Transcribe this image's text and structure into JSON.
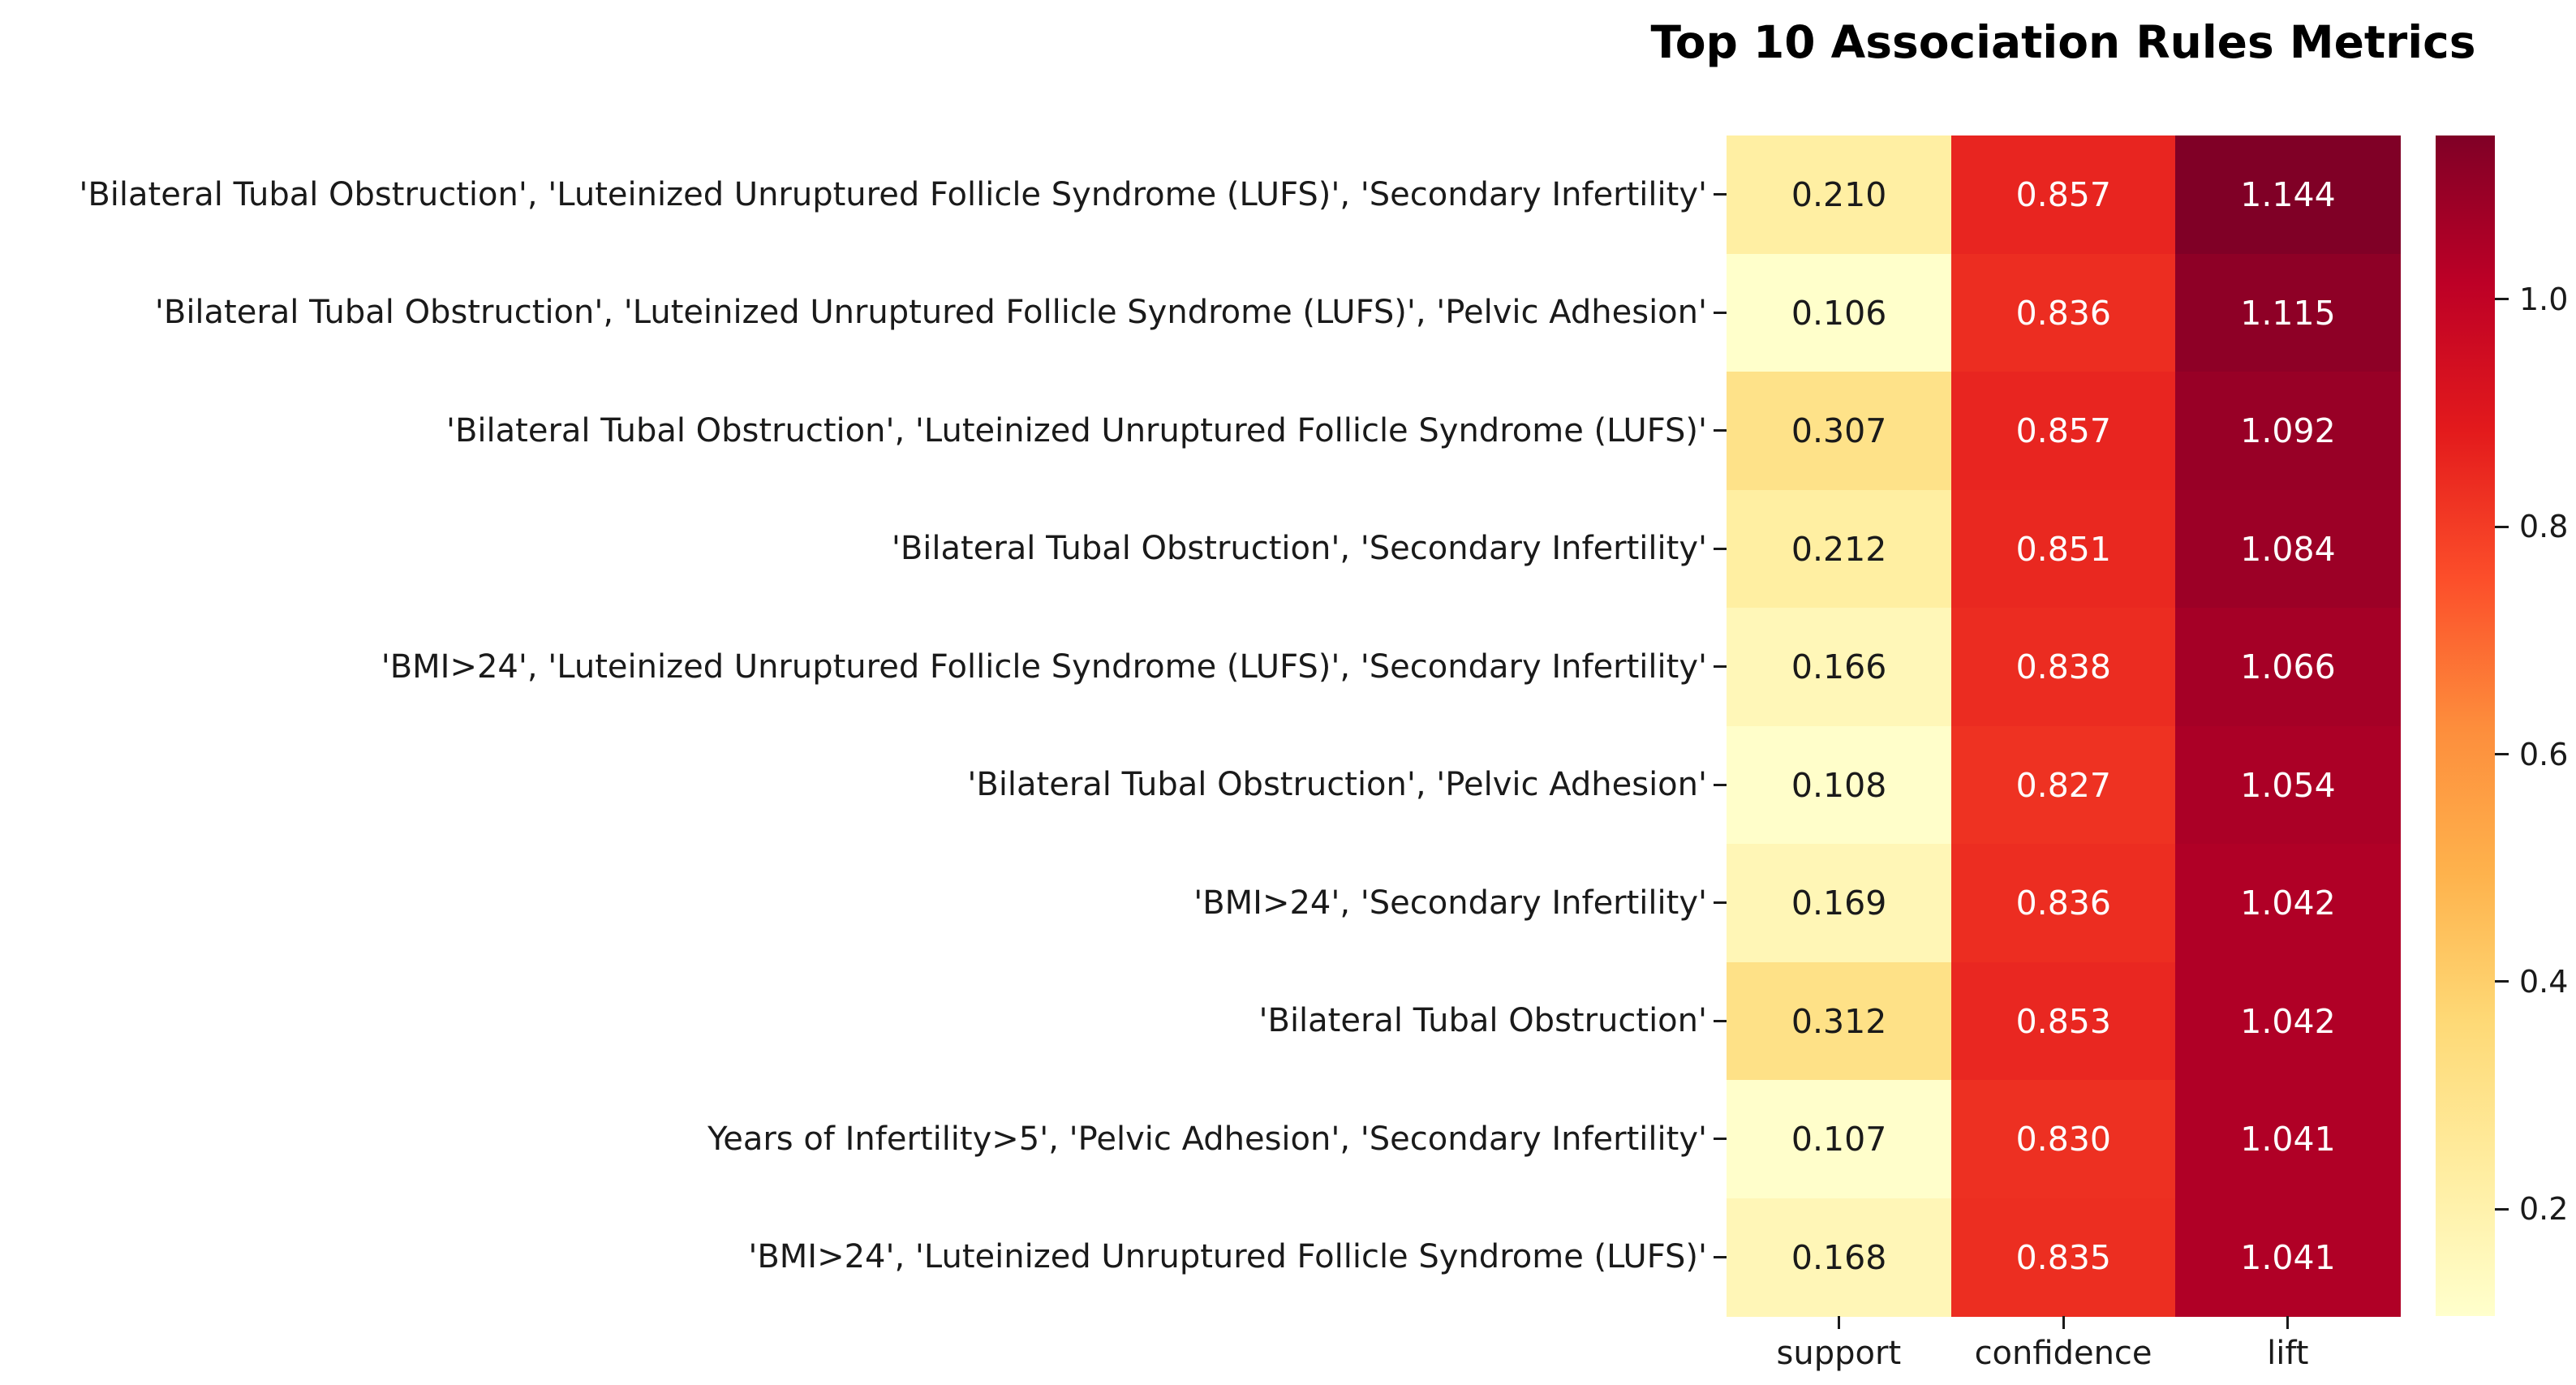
{
  "title": "Top 10 Association Rules Metrics",
  "chart_data": {
    "type": "heatmap",
    "colormap": "YlOrRd",
    "columns": [
      "support",
      "confidence",
      "lift"
    ],
    "text_colors": [
      "#1a1a1a",
      "#ffffff",
      "#ffffff"
    ],
    "rows": [
      {
        "label": "'Bilateral Tubal Obstruction', 'Luteinized Unruptured Follicle Syndrome (LUFS)', 'Secondary Infertility'",
        "values": [
          "0.210",
          "0.857",
          "1.144"
        ],
        "colors": [
          "#ffefa3",
          "#e82520",
          "#800026"
        ]
      },
      {
        "label": "'Bilateral Tubal Obstruction', 'Luteinized Unruptured Follicle Syndrome (LUFS)', 'Pelvic Adhesion'",
        "values": [
          "0.106",
          "0.836",
          "1.115"
        ],
        "colors": [
          "#ffffcb",
          "#ec2d21",
          "#8e0026"
        ]
      },
      {
        "label": "'Bilateral Tubal Obstruction', 'Luteinized Unruptured Follicle Syndrome (LUFS)'",
        "values": [
          "0.307",
          "0.857",
          "1.092"
        ],
        "colors": [
          "#fee289",
          "#e82520",
          "#980026"
        ]
      },
      {
        "label": "'Bilateral Tubal Obstruction', 'Secondary Infertility'",
        "values": [
          "0.212",
          "0.851",
          "1.084"
        ],
        "colors": [
          "#ffefa2",
          "#e92820",
          "#9c0026"
        ]
      },
      {
        "label": "'BMI>24', 'Luteinized Unruptured Follicle Syndrome (LUFS)', 'Secondary Infertility'",
        "values": [
          "0.166",
          "0.838",
          "1.066"
        ],
        "colors": [
          "#fff7b8",
          "#eb2c21",
          "#a50026"
        ]
      },
      {
        "label": "'Bilateral Tubal Obstruction', 'Pelvic Adhesion'",
        "values": [
          "0.108",
          "0.827",
          "1.054"
        ],
        "colors": [
          "#fffeca",
          "#ee3222",
          "#ab0026"
        ]
      },
      {
        "label": "'BMI>24', 'Secondary Infertility'",
        "values": [
          "0.169",
          "0.836",
          "1.042"
        ],
        "colors": [
          "#fff6b6",
          "#ec2d21",
          "#b00026"
        ]
      },
      {
        "label": "'Bilateral Tubal Obstruction'",
        "values": [
          "0.312",
          "0.853",
          "1.042"
        ],
        "colors": [
          "#fee187",
          "#e92721",
          "#b00026"
        ]
      },
      {
        "label": "Years of Infertility>5', 'Pelvic Adhesion', 'Secondary Infertility'",
        "values": [
          "0.107",
          "0.830",
          "1.041"
        ],
        "colors": [
          "#fffecb",
          "#ed3022",
          "#b00026"
        ]
      },
      {
        "label": "'BMI>24', 'Luteinized Unruptured Follicle Syndrome (LUFS)'",
        "values": [
          "0.168",
          "0.835",
          "1.041"
        ],
        "colors": [
          "#fff6b7",
          "#ec2e21",
          "#b00026"
        ]
      }
    ],
    "colorbar": {
      "vmin": 0.106,
      "vmax": 1.144,
      "tick_values": [
        1.0,
        0.8,
        0.6,
        0.4,
        0.2
      ],
      "tick_labels": [
        "1.0",
        "0.8",
        "0.6",
        "0.4",
        "0.2"
      ],
      "gradient_top_to_bottom": [
        "#800026",
        "#bd0026",
        "#e31a1c",
        "#fc4e2a",
        "#fd8d3c",
        "#feb24c",
        "#fed976",
        "#ffeda0",
        "#ffffcc"
      ]
    }
  }
}
